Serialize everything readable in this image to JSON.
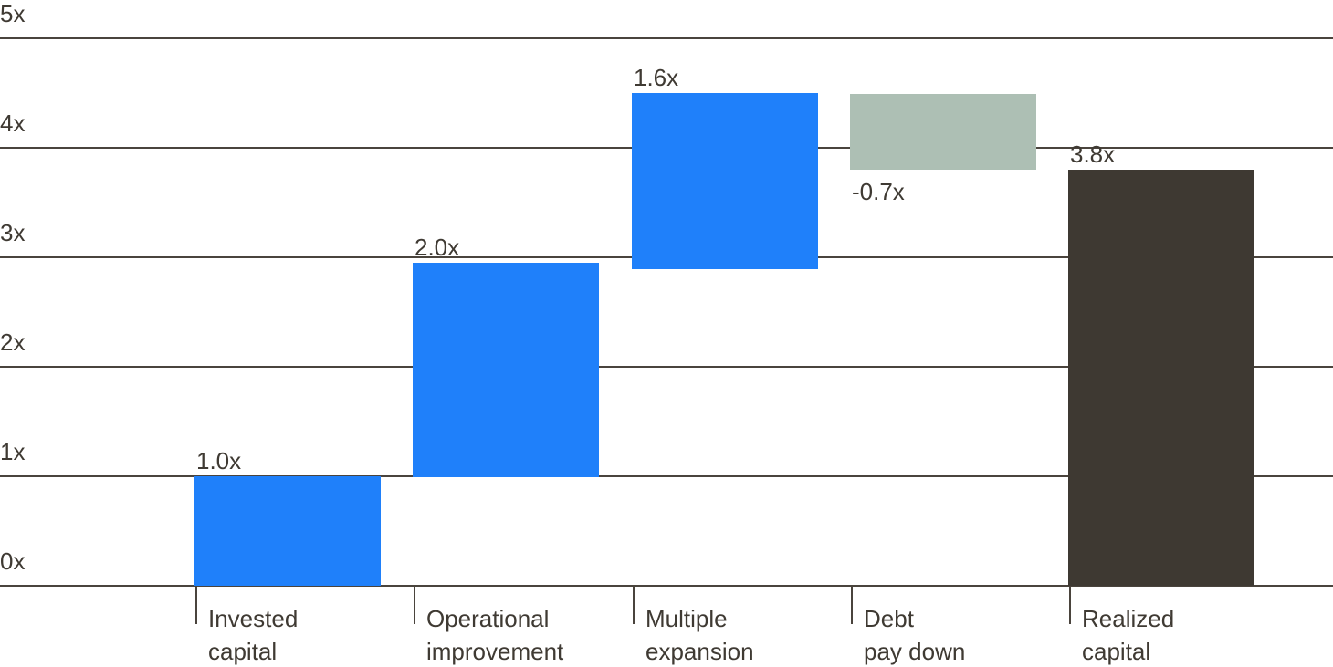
{
  "chart_data": {
    "type": "bar",
    "subtype": "waterfall",
    "title": "",
    "xlabel": "",
    "ylabel": "",
    "unit_suffix": "x",
    "ylim": [
      0,
      5
    ],
    "grid": true,
    "legend": "none",
    "y_axis": [
      {
        "label": "5x",
        "value": 5
      },
      {
        "label": "4x",
        "value": 4
      },
      {
        "label": "3x",
        "value": 3
      },
      {
        "label": "2x",
        "value": 2
      },
      {
        "label": "1x",
        "value": 1
      },
      {
        "label": "0x",
        "value": 0
      }
    ],
    "categories": [
      "Invested capital",
      "Operational improvement",
      "Multiple expansion",
      "Debt pay down",
      "Realized capital"
    ],
    "values": [
      1.0,
      2.0,
      1.6,
      -0.7,
      3.8
    ],
    "bars": [
      {
        "name": "invested-capital",
        "category_lines": [
          "Invested",
          "capital"
        ],
        "delta": 1.0,
        "label": "1.0x",
        "label_position": "above",
        "plot_start": 0.0,
        "plot_end": 1.0,
        "color_role": "increase"
      },
      {
        "name": "operational-improvement",
        "category_lines": [
          "Operational",
          "improvement"
        ],
        "delta": 2.0,
        "label": "2.0x",
        "label_position": "above",
        "plot_start": 0.99,
        "plot_end": 2.95,
        "color_role": "increase"
      },
      {
        "name": "multiple-expansion",
        "category_lines": [
          "Multiple",
          "expansion"
        ],
        "delta": 1.6,
        "label": "1.6x",
        "label_position": "above",
        "plot_start": 2.89,
        "plot_end": 4.5,
        "color_role": "increase"
      },
      {
        "name": "debt-pay-down",
        "category_lines": [
          "Debt",
          "pay down"
        ],
        "delta": -0.7,
        "label": "-0.7x",
        "label_position": "below",
        "plot_start": 3.8,
        "plot_end": 4.49,
        "color_role": "decrease"
      },
      {
        "name": "realized-capital",
        "category_lines": [
          "Realized",
          "capital"
        ],
        "delta": 3.8,
        "label": "3.8x",
        "label_position": "above",
        "plot_start": 0.0,
        "plot_end": 3.8,
        "color_role": "total"
      }
    ]
  },
  "colors": {
    "increase": "#1F80FA",
    "decrease": "#ADBFB4",
    "total": "#3E3932",
    "gridline": "#4A443D",
    "text": "#3F3A33",
    "background": "#FFFFFF"
  }
}
